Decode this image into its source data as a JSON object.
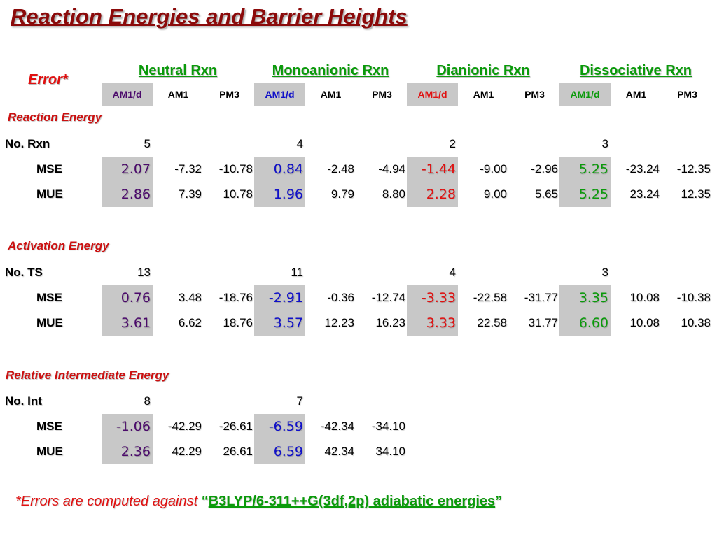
{
  "title": "Reaction Energies and Barrier Heights",
  "error_label": "Error*",
  "groups": [
    "Neutral Rxn",
    "Monoanionic Rxn",
    "Dianionic Rxn",
    "Dissociative Rxn"
  ],
  "methods": [
    "AM1/d",
    "AM1",
    "PM3"
  ],
  "colors": {
    "neutral": "#4b0a6b",
    "monoanionic": "#1010c8",
    "dianionic": "#e01010",
    "dissociative": "#0a9a0a",
    "group_header": "#0a9a0a",
    "shade": "#c8c8c8"
  },
  "sections": {
    "reaction": {
      "label": "Reaction Energy",
      "count_label": "No. Rxn",
      "counts": [
        "5",
        "4",
        "2",
        "3"
      ],
      "mse_label": "MSE",
      "mue_label": "MUE",
      "mse": [
        "2.07",
        "-7.32",
        "-10.78",
        "0.84",
        "-2.48",
        "-4.94",
        "-1.44",
        "-9.00",
        "-2.96",
        "5.25",
        "-23.24",
        "-12.35"
      ],
      "mue": [
        "2.86",
        "7.39",
        "10.78",
        "1.96",
        "9.79",
        "8.80",
        "2.28",
        "9.00",
        "5.65",
        "5.25",
        "23.24",
        "12.35"
      ]
    },
    "activation": {
      "label": "Activation Energy",
      "count_label": "No. TS",
      "counts": [
        "13",
        "11",
        "4",
        "3"
      ],
      "mse_label": "MSE",
      "mue_label": "MUE",
      "mse": [
        "0.76",
        "3.48",
        "-18.76",
        "-2.91",
        "-0.36",
        "-12.74",
        "-3.33",
        "-22.58",
        "-31.77",
        "3.35",
        "10.08",
        "-10.38"
      ],
      "mue": [
        "3.61",
        "6.62",
        "18.76",
        "3.57",
        "12.23",
        "16.23",
        "3.33",
        "22.58",
        "31.77",
        "6.60",
        "10.08",
        "10.38"
      ]
    },
    "intermediate": {
      "label": "Relative Intermediate Energy",
      "count_label": "No. Int",
      "counts": [
        "8",
        "7"
      ],
      "mse_label": "MSE",
      "mue_label": "MUE",
      "mse": [
        "-1.06",
        "-42.29",
        "-26.61",
        "-6.59",
        "-42.34",
        "-34.10"
      ],
      "mue": [
        "2.36",
        "42.29",
        "26.61",
        "6.59",
        "42.34",
        "34.10"
      ]
    }
  },
  "footnote": {
    "prefix": "*Errors are computed against ",
    "open_quote": "“",
    "reference": "B3LYP/6-311++G(3df,2p) adiabatic energies",
    "close_quote": "”"
  }
}
